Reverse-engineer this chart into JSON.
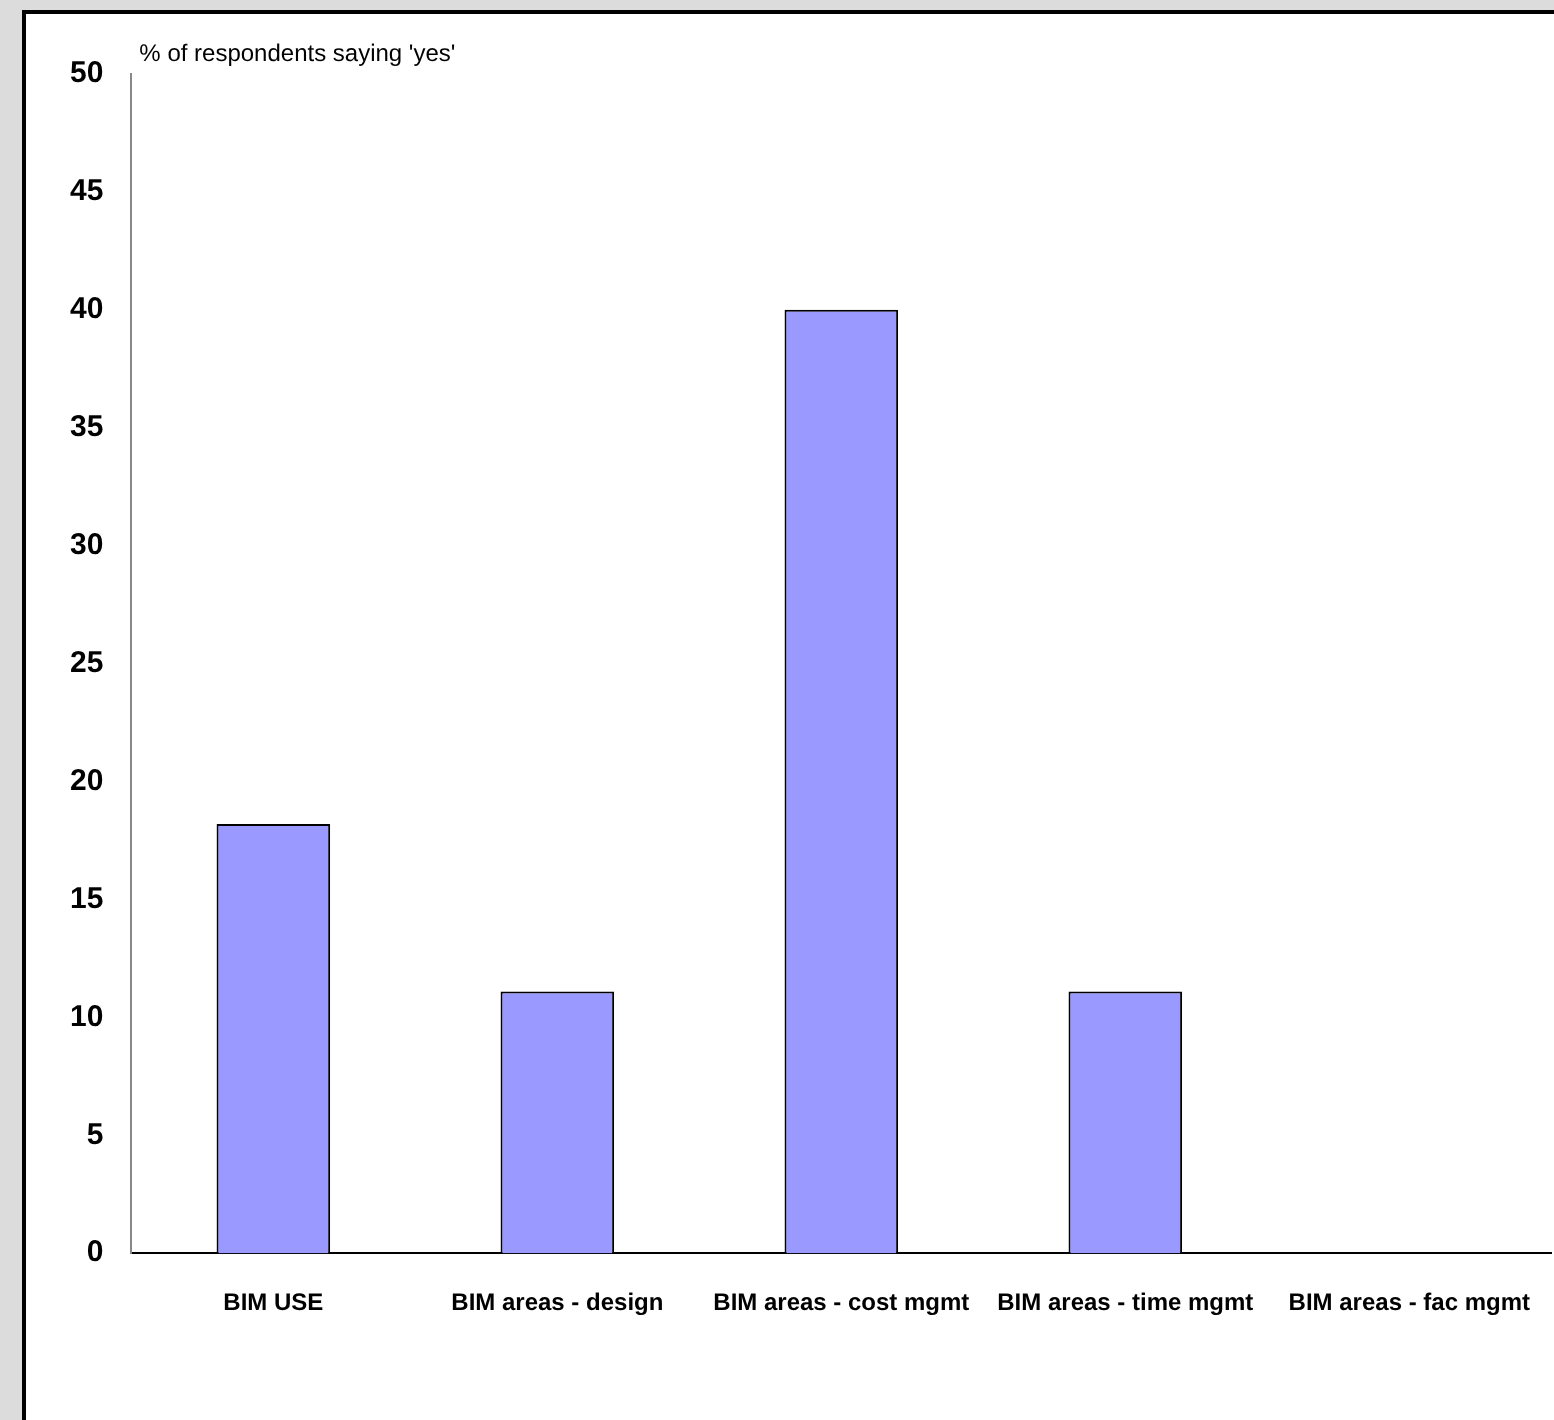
{
  "chart_data": {
    "type": "bar",
    "ylabel": "% of respondents saying 'yes'",
    "categories": [
      "BIM USE",
      "BIM areas - design",
      "BIM areas - cost mgmt",
      "BIM areas - time mgmt",
      "BIM areas - fac mgmt"
    ],
    "values": [
      18.2,
      11.1,
      40,
      11.1,
      0
    ],
    "color": "#9999ff",
    "ylim": [
      0,
      50
    ],
    "yticks": [
      0,
      5,
      10,
      15,
      20,
      25,
      30,
      35,
      40,
      45,
      50
    ],
    "grid": false,
    "legend": false
  }
}
